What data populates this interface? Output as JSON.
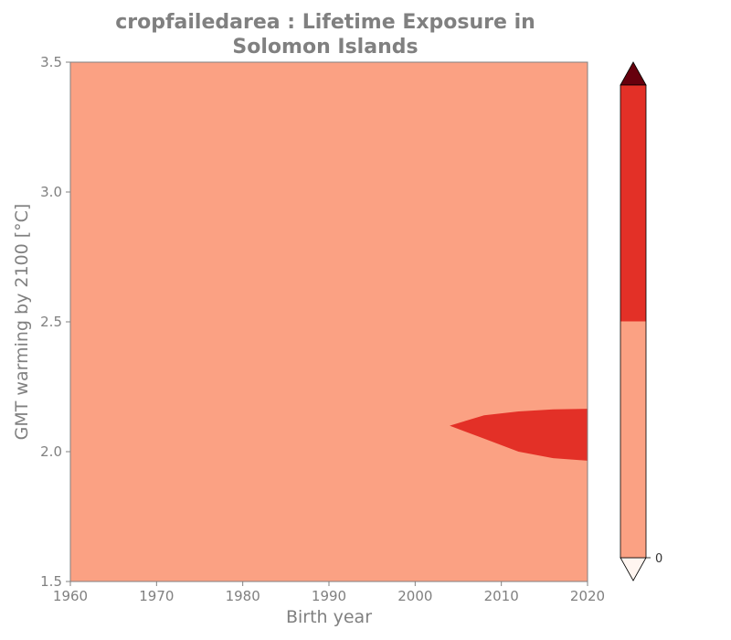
{
  "chart_data": {
    "type": "heatmap",
    "title_lines": [
      "cropfailedarea : Lifetime Exposure in",
      "Solomon Islands"
    ],
    "xlabel": "Birth year",
    "ylabel": "GMT warming by 2100 [°C]",
    "xlim": [
      1960,
      2020
    ],
    "ylim": [
      1.5,
      3.5
    ],
    "xticks": [
      1960,
      1970,
      1980,
      1990,
      2000,
      2010,
      2020
    ],
    "xtick_labels": [
      "1960",
      "1970",
      "1980",
      "1990",
      "2000",
      "2010",
      "2020"
    ],
    "yticks": [
      1.5,
      2.0,
      2.5,
      3.0,
      3.5
    ],
    "ytick_labels": [
      "1.5",
      "2.0",
      "2.5",
      "3.0",
      "3.5"
    ],
    "background_level_color": "#fba183",
    "high_exposure_region": {
      "color": "#e33027",
      "upper_edge": [
        [
          2004,
          2.1
        ],
        [
          2008,
          2.14
        ],
        [
          2012,
          2.155
        ],
        [
          2016,
          2.163
        ],
        [
          2020,
          2.165
        ]
      ],
      "lower_edge": [
        [
          2020,
          1.965
        ],
        [
          2016,
          1.975
        ],
        [
          2012,
          2.0
        ],
        [
          2008,
          2.05
        ],
        [
          2004,
          2.1
        ]
      ]
    },
    "colorbar": {
      "segments": [
        {
          "color": "#fff5f0"
        },
        {
          "color": "#fba183"
        },
        {
          "color": "#e33027"
        },
        {
          "color": "#67000d"
        }
      ],
      "extend": "both",
      "tick_labels": [
        "0"
      ]
    }
  }
}
